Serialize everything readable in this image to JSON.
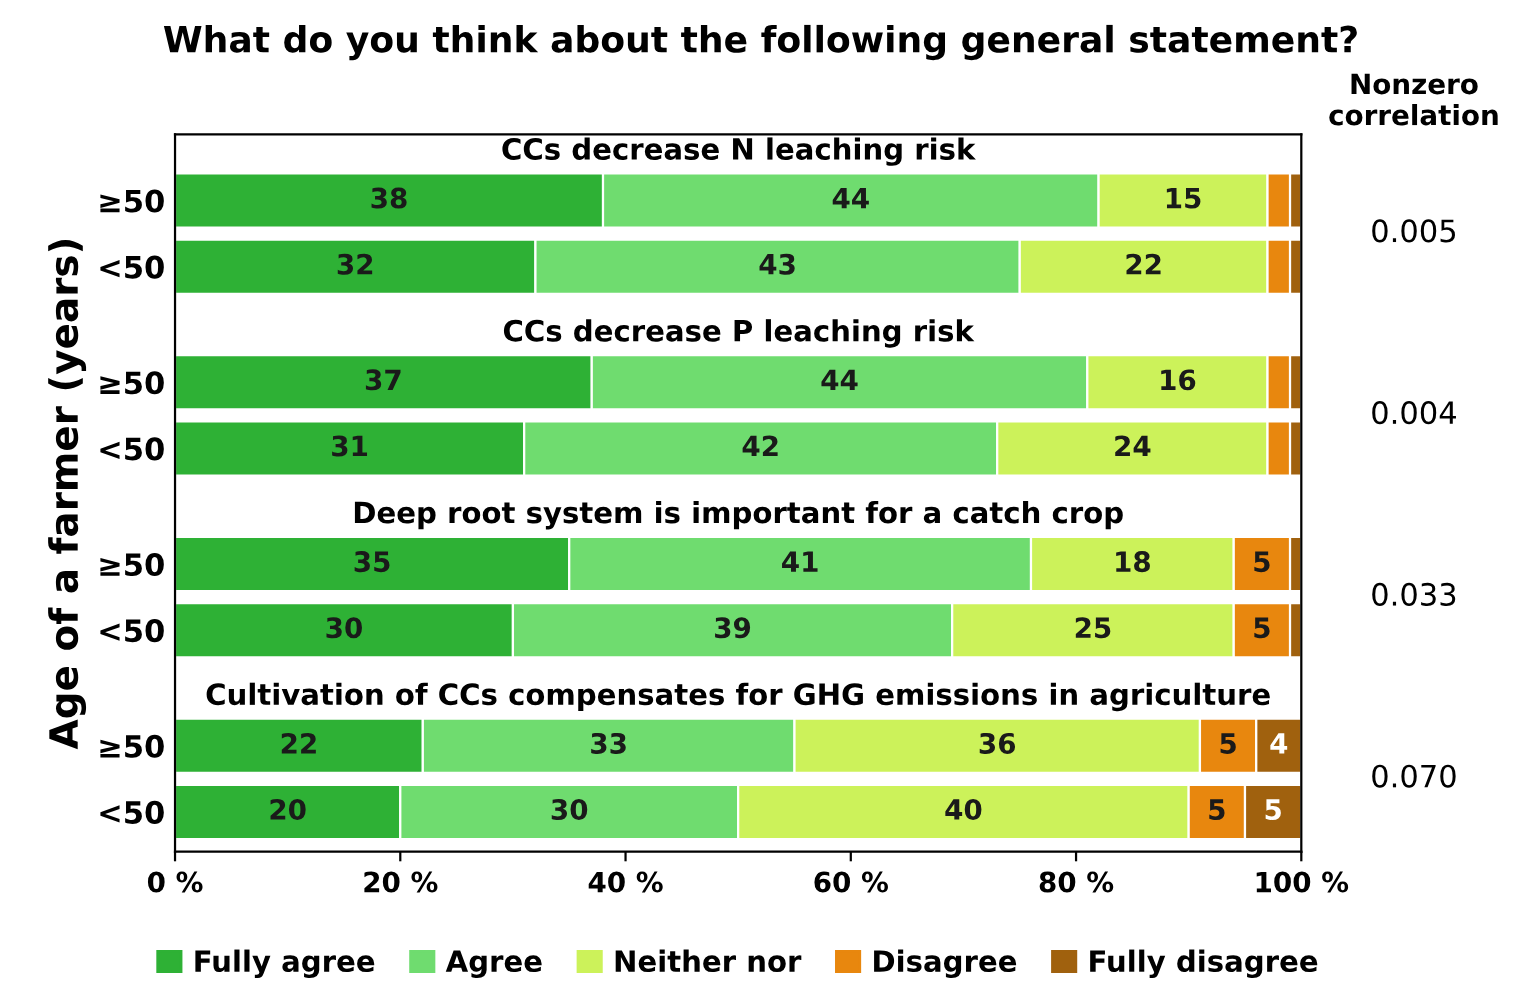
{
  "chart_data": {
    "type": "bar",
    "orientation": "horizontal",
    "stacked": true,
    "title": "What do you think about the following general statement?",
    "ylabel": "Age of a farmer (years)",
    "categories": [
      "≥50",
      "<50",
      "≥50",
      "<50",
      "≥50",
      "<50",
      "≥50",
      "<50"
    ],
    "series": [
      {
        "name": "Fully agree",
        "color": "#2eb135",
        "values": [
          38,
          32,
          37,
          31,
          35,
          30,
          22,
          20
        ],
        "value_labels": [
          "38",
          "32",
          "37",
          "31",
          "35",
          "30",
          "22",
          "20"
        ]
      },
      {
        "name": "Agree",
        "color": "#6fdc6f",
        "values": [
          44,
          43,
          44,
          42,
          41,
          39,
          33,
          30
        ],
        "value_labels": [
          "44",
          "43",
          "44",
          "42",
          "41",
          "39",
          "33",
          "30"
        ]
      },
      {
        "name": "Neither nor",
        "color": "#ccf25a",
        "values": [
          15,
          22,
          16,
          24,
          18,
          25,
          36,
          40
        ],
        "value_labels": [
          "15",
          "22",
          "16",
          "24",
          "18",
          "25",
          "36",
          "40"
        ]
      },
      {
        "name": "Disagree",
        "color": "#e8870e",
        "values": [
          2,
          2,
          2,
          2,
          5,
          5,
          5,
          5
        ],
        "value_labels": [
          null,
          null,
          null,
          null,
          "5",
          "5",
          "5",
          "5"
        ]
      },
      {
        "name": "Fully disagree",
        "color": "#a0610e",
        "values": [
          1,
          1,
          1,
          1,
          1,
          1,
          4,
          5
        ],
        "value_labels": [
          null,
          null,
          null,
          null,
          null,
          null,
          "4",
          "5"
        ]
      }
    ],
    "xlim": [
      0,
      100
    ],
    "xticks": [
      {
        "value": 0,
        "label": "0 %"
      },
      {
        "value": 20,
        "label": "20 %"
      },
      {
        "value": 40,
        "label": "40 %"
      },
      {
        "value": 60,
        "label": "60 %"
      },
      {
        "value": 80,
        "label": "80 %"
      },
      {
        "value": 100,
        "label": "100 %"
      }
    ],
    "annotations": [
      "CCs decrease N leaching risk",
      "CCs decrease P leaching risk",
      "Deep root system is important for a catch crop",
      "Cultivation of CCs compensates for GHG emissions in agriculture",
      "Nonzero\ncorrelation",
      "0.005",
      "0.004",
      "0.033",
      "0.070"
    ],
    "legend": "bottom",
    "grid": false
  }
}
